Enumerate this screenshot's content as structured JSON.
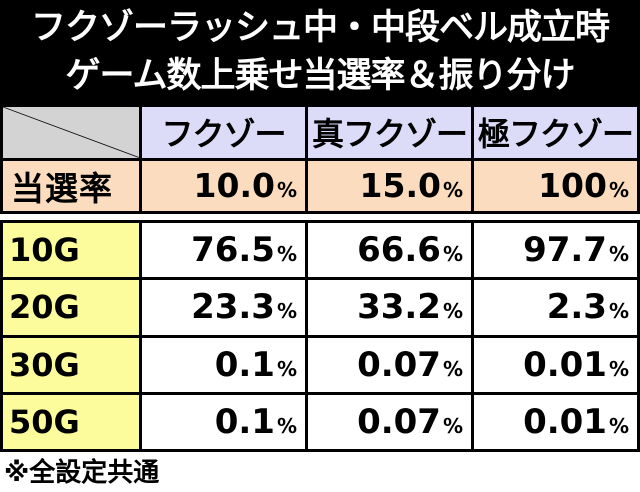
{
  "title": {
    "line1": "フクゾーラッシュ中・中段ベル成立時",
    "line2": "ゲーム数上乗せ当選率＆振り分け"
  },
  "columns": [
    "フクゾー",
    "真フクゾー",
    "極フクゾー"
  ],
  "win_rate": {
    "label": "当選率",
    "values": [
      "10.0",
      "15.0",
      "100"
    ],
    "unit": "%"
  },
  "distribution": {
    "unit": "%",
    "rows": [
      {
        "label": "10G",
        "values": [
          "76.5",
          "66.6",
          "97.7"
        ]
      },
      {
        "label": "20G",
        "values": [
          "23.3",
          "33.2",
          "2.3"
        ]
      },
      {
        "label": "30G",
        "values": [
          "0.1",
          "0.07",
          "0.01"
        ]
      },
      {
        "label": "50G",
        "values": [
          "0.1",
          "0.07",
          "0.01"
        ]
      }
    ]
  },
  "note": "※全設定共通",
  "colors": {
    "title_bg": "#000000",
    "corner": "#d3d3d3",
    "column_header": "#dcdcf8",
    "win_rate_row": "#fbdcbe",
    "row_header": "#fcfc9c",
    "value_bg": "#ffffff"
  }
}
